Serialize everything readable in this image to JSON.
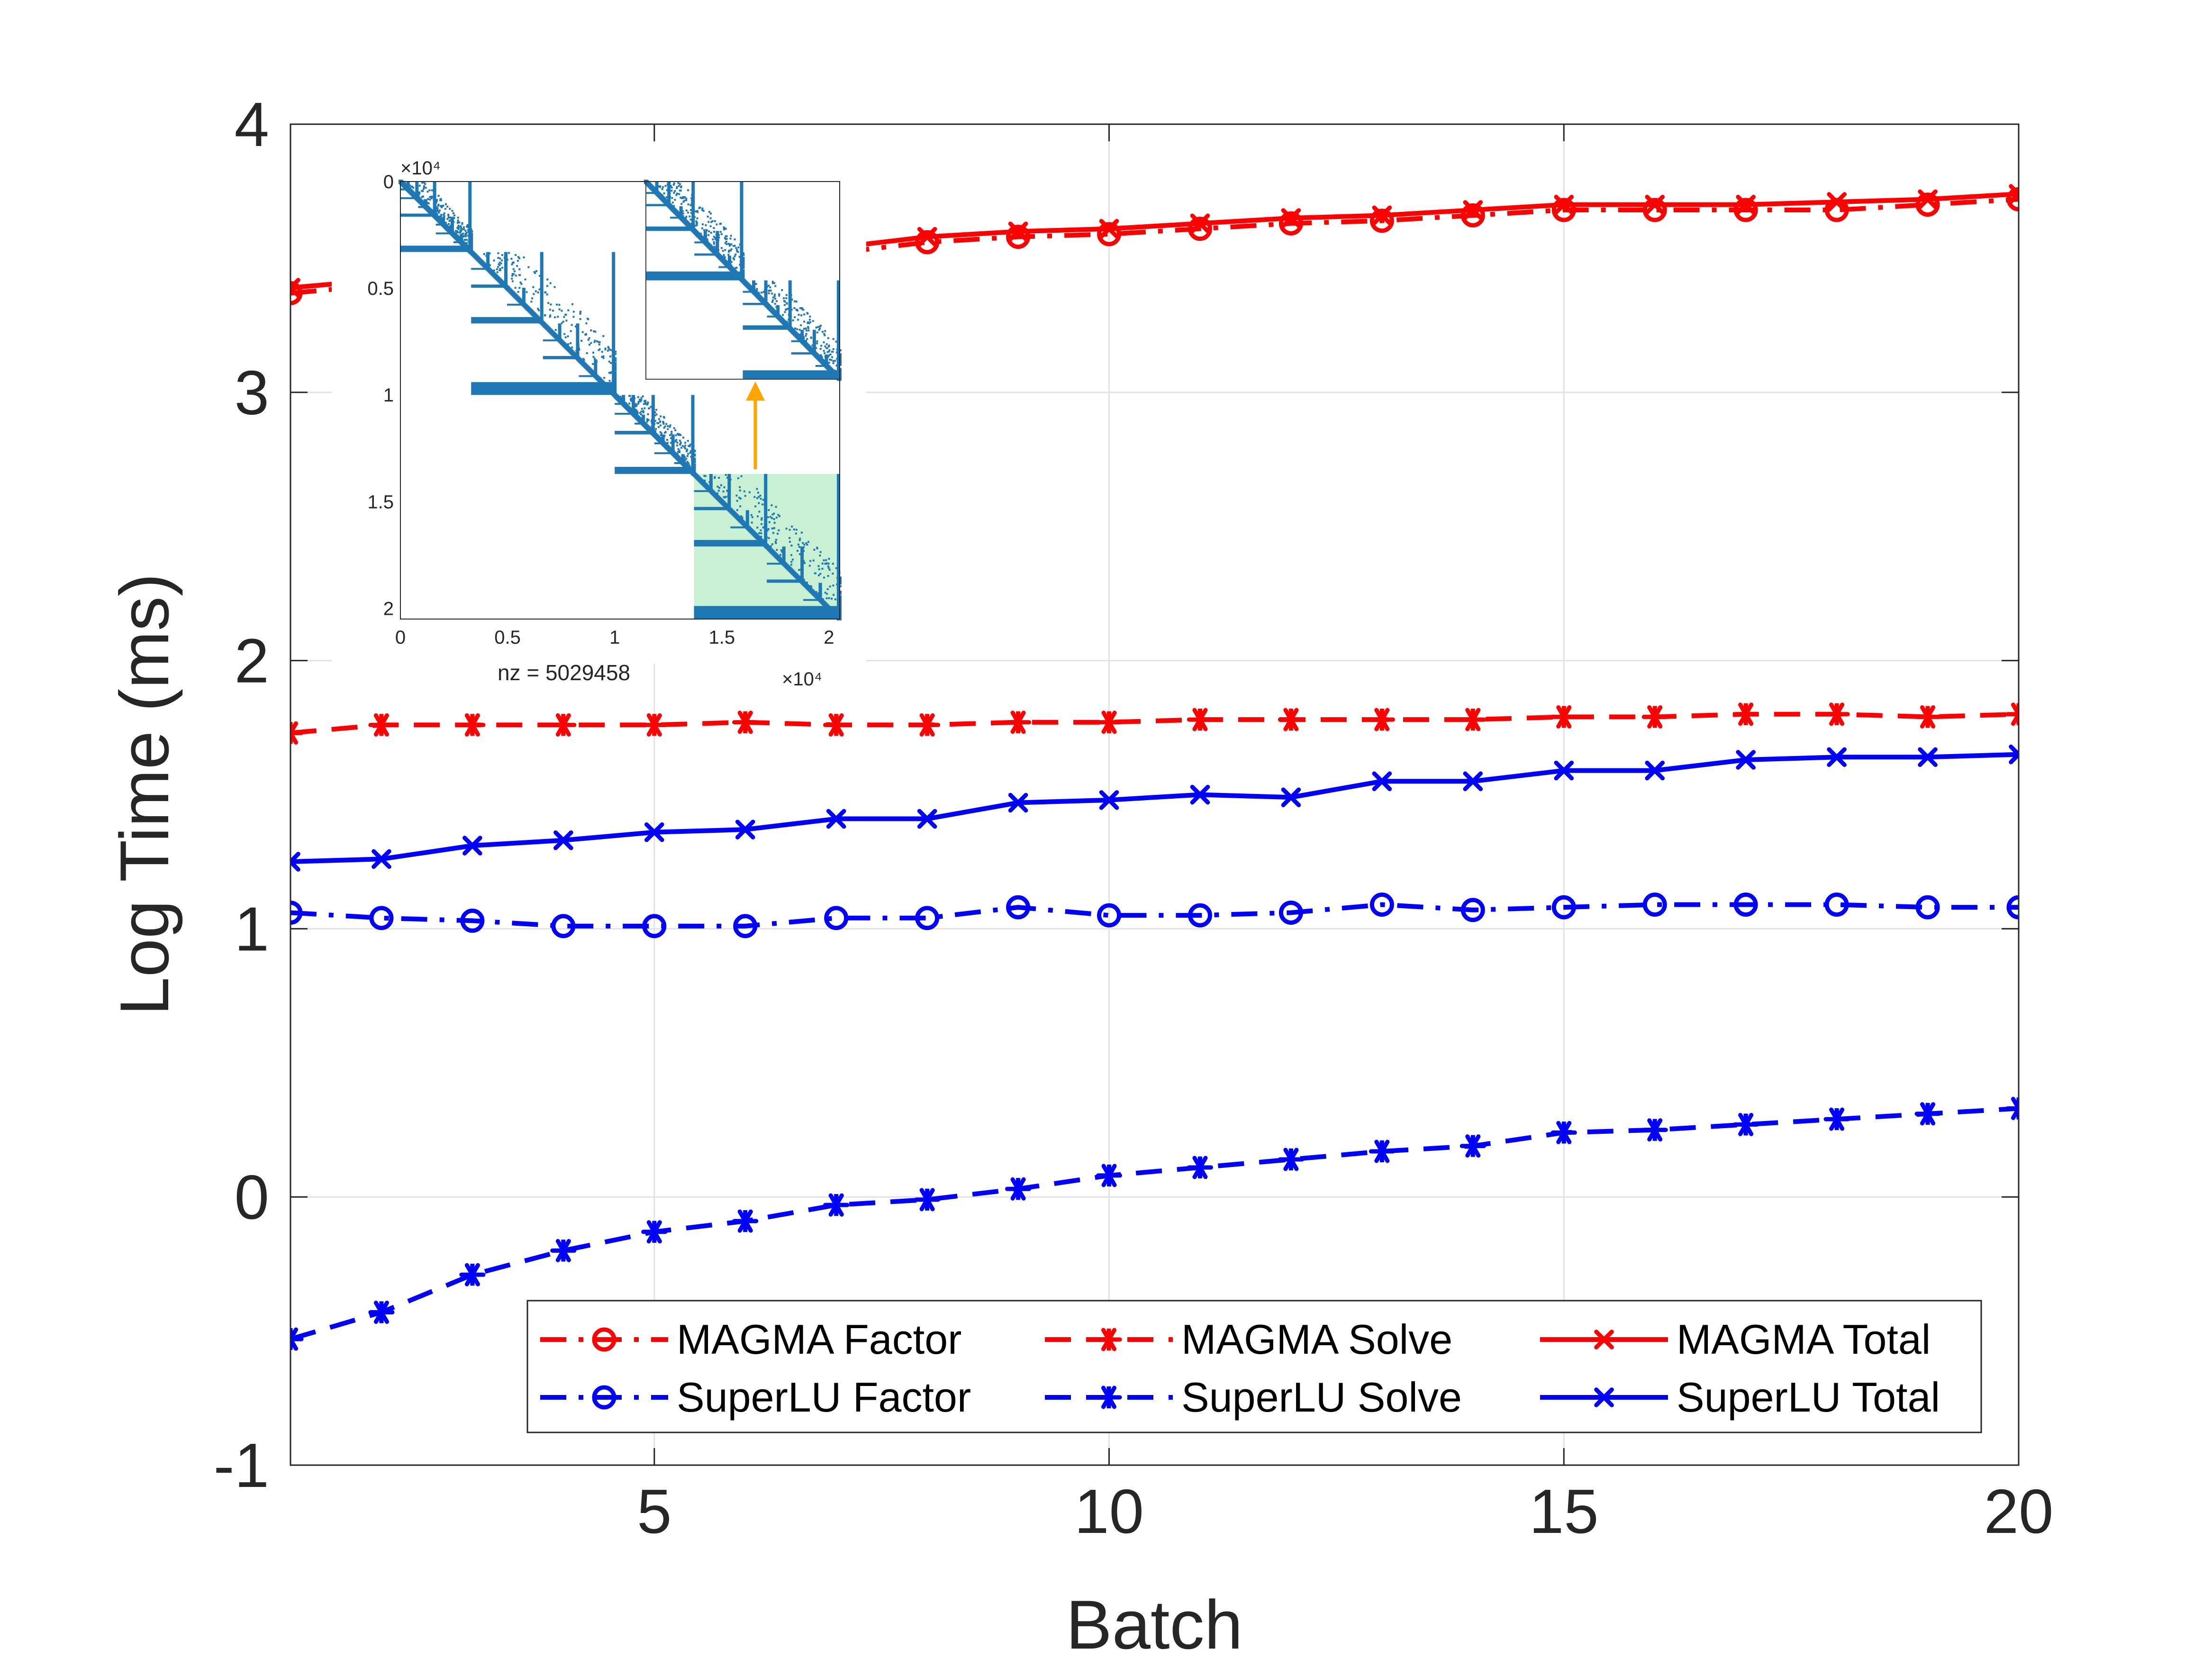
{
  "chart_data": {
    "type": "line",
    "xlabel": "Batch",
    "ylabel": "Log Time (ms)",
    "xlim": [
      1,
      20
    ],
    "ylim": [
      -1,
      4
    ],
    "xticks": [
      "5",
      "10",
      "15",
      "20"
    ],
    "yticks": [
      "-1",
      "0",
      "1",
      "2",
      "3",
      "4"
    ],
    "grid": true,
    "legend_placement": "bottom-right",
    "x": [
      1,
      2,
      3,
      4,
      5,
      6,
      7,
      8,
      9,
      10,
      11,
      12,
      13,
      14,
      15,
      16,
      17,
      18,
      19,
      20
    ],
    "series": [
      {
        "name": "MAGMA Factor",
        "color": "#ff0000",
        "dash": "dash-dot",
        "marker": "circle",
        "values": [
          3.37,
          3.4,
          3.43,
          3.45,
          3.47,
          3.49,
          3.52,
          3.56,
          3.58,
          3.59,
          3.61,
          3.63,
          3.64,
          3.66,
          3.68,
          3.68,
          3.68,
          3.68,
          3.7,
          3.72
        ]
      },
      {
        "name": "MAGMA Solve",
        "color": "#ff0000",
        "dash": "dash",
        "marker": "star",
        "values": [
          1.73,
          1.76,
          1.76,
          1.76,
          1.76,
          1.77,
          1.76,
          1.76,
          1.77,
          1.77,
          1.78,
          1.78,
          1.78,
          1.78,
          1.79,
          1.79,
          1.8,
          1.8,
          1.79,
          1.8
        ]
      },
      {
        "name": "MAGMA Total",
        "color": "#ff0000",
        "dash": "solid",
        "marker": "x",
        "values": [
          3.39,
          3.42,
          3.45,
          3.47,
          3.49,
          3.51,
          3.54,
          3.58,
          3.6,
          3.61,
          3.63,
          3.65,
          3.66,
          3.68,
          3.7,
          3.7,
          3.7,
          3.71,
          3.72,
          3.74
        ]
      },
      {
        "name": "SuperLU Factor",
        "color": "#0000ff",
        "dash": "dash-dot",
        "marker": "circle",
        "values": [
          1.06,
          1.04,
          1.03,
          1.01,
          1.01,
          1.01,
          1.04,
          1.04,
          1.08,
          1.05,
          1.05,
          1.06,
          1.09,
          1.07,
          1.08,
          1.09,
          1.09,
          1.09,
          1.08,
          1.08
        ]
      },
      {
        "name": "SuperLU Solve",
        "color": "#0000ff",
        "dash": "dash",
        "marker": "star",
        "values": [
          -0.53,
          -0.43,
          -0.29,
          -0.2,
          -0.13,
          -0.09,
          -0.03,
          -0.01,
          0.03,
          0.08,
          0.11,
          0.14,
          0.17,
          0.19,
          0.24,
          0.25,
          0.27,
          0.29,
          0.31,
          0.33
        ]
      },
      {
        "name": "SuperLU Total",
        "color": "#0000ff",
        "dash": "solid",
        "marker": "x",
        "values": [
          1.25,
          1.26,
          1.31,
          1.33,
          1.36,
          1.37,
          1.41,
          1.41,
          1.47,
          1.48,
          1.5,
          1.49,
          1.55,
          1.55,
          1.59,
          1.59,
          1.63,
          1.64,
          1.64,
          1.65
        ]
      }
    ],
    "inset": {
      "type": "sparsity-pattern",
      "xlabel": "nz = 5029458",
      "x_exponent": "×10⁴",
      "y_exponent": "×10⁴",
      "xticks": [
        "0",
        "0.5",
        "1",
        "1.5",
        "2"
      ],
      "yticks": [
        "0",
        "0.5",
        "1",
        "1.5",
        "2"
      ],
      "xlim": [
        0,
        2.05
      ],
      "ylim": [
        0,
        2.05
      ],
      "blocks": [
        [
          0,
          0.33
        ],
        [
          0.33,
          1.0
        ],
        [
          1.0,
          1.37
        ],
        [
          1.37,
          2.05
        ]
      ],
      "highlight": [
        1.37,
        2.05
      ],
      "dot_color": "#1f77b4",
      "highlight_color": "#c8f0d2",
      "arrow_color": "#ffa500"
    }
  }
}
